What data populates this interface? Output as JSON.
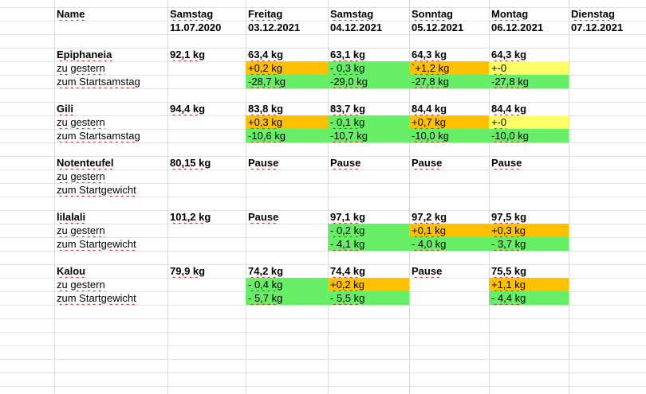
{
  "header": {
    "name_label": "Name",
    "days": [
      {
        "weekday": "Samstag",
        "date": "11.07.2020"
      },
      {
        "weekday": "Freitag",
        "date": "03.12.2021"
      },
      {
        "weekday": "Samstag",
        "date": "04.12.2021"
      },
      {
        "weekday": "Sonntag",
        "date": "05.12.2021"
      },
      {
        "weekday": "Montag",
        "date": "06.12.2021"
      },
      {
        "weekday": "Dienstag",
        "date": "07.12.2021"
      }
    ]
  },
  "people": [
    {
      "name": "Epiphaneia",
      "weights": [
        "92,1 kg",
        "63,4 kg",
        "63,1 kg",
        "64,3 kg",
        "64,3 kg",
        ""
      ],
      "rows": [
        {
          "label": "zu gestern",
          "values": [
            "",
            "+0,2 kg",
            "- 0,3 kg",
            "`+1,2 kg",
            "+-0",
            ""
          ],
          "fills": [
            "",
            "orange",
            "green",
            "orange",
            "yellow",
            ""
          ]
        },
        {
          "label": "zum Startsamstag",
          "values": [
            "",
            "-28,7 kg",
            "-29,0 kg",
            "-27,8 kg",
            "-27,8 kg",
            ""
          ],
          "fills": [
            "",
            "green",
            "green",
            "green",
            "green",
            ""
          ]
        }
      ]
    },
    {
      "name": "Gili",
      "weights": [
        "94,4 kg",
        "83,8 kg",
        "83,7 kg",
        "84,4 kg",
        "84,4 kg",
        ""
      ],
      "rows": [
        {
          "label": "zu gestern",
          "values": [
            "",
            "+0,3 kg",
            "- 0,1 kg",
            "+0,7 kg",
            "+-0",
            ""
          ],
          "fills": [
            "",
            "orange",
            "green",
            "orange",
            "yellow",
            ""
          ]
        },
        {
          "label": "zum Startsamstag",
          "values": [
            "",
            "-10,6 kg",
            "-10,7 kg",
            "-10,0 kg",
            "-10,0 kg",
            ""
          ],
          "fills": [
            "",
            "green",
            "green",
            "green",
            "green",
            ""
          ]
        }
      ]
    },
    {
      "name": "Notenteufel",
      "weights": [
        "80,15 kg",
        "Pause",
        "Pause",
        "Pause",
        "Pause",
        ""
      ],
      "rows": [
        {
          "label": "zu gestern",
          "values": [
            "",
            "",
            "",
            "",
            "",
            ""
          ],
          "fills": [
            "",
            "",
            "",
            "",
            "",
            ""
          ]
        },
        {
          "label": "zum Startgewicht",
          "values": [
            "",
            "",
            "",
            "",
            "",
            ""
          ],
          "fills": [
            "",
            "",
            "",
            "",
            "",
            ""
          ]
        }
      ]
    },
    {
      "name": "lilalali",
      "weights": [
        "101,2 kg",
        "Pause",
        "97,1 kg",
        "97,2 kg",
        "97,5 kg",
        ""
      ],
      "rows": [
        {
          "label": "zu gestern",
          "values": [
            "",
            "",
            "- 0,2 kg",
            "+0,1 kg",
            "+0,3 kg",
            ""
          ],
          "fills": [
            "",
            "",
            "green",
            "orange",
            "orange",
            ""
          ]
        },
        {
          "label": "zum Startgewicht",
          "values": [
            "",
            "",
            "- 4,1 kg",
            "- 4,0 kg",
            "- 3,7 kg",
            ""
          ],
          "fills": [
            "",
            "",
            "green",
            "green",
            "green",
            ""
          ]
        }
      ]
    },
    {
      "name": "Kalou",
      "weights": [
        "79,9 kg",
        "74,2 kg",
        "74,4 kg",
        "Pause",
        "75,5 kg",
        ""
      ],
      "rows": [
        {
          "label": "zu gestern",
          "values": [
            "",
            "- 0,4 kg",
            "+0,2 kg",
            "",
            "+1,1 kg",
            ""
          ],
          "fills": [
            "",
            "green",
            "orange",
            "",
            "orange",
            ""
          ]
        },
        {
          "label": "zum Startgewicht",
          "values": [
            "",
            "- 5,7 kg",
            "- 5,5 kg",
            "",
            "- 4,4 kg",
            ""
          ],
          "fills": [
            "",
            "green",
            "green",
            "",
            "green",
            ""
          ]
        }
      ]
    }
  ]
}
